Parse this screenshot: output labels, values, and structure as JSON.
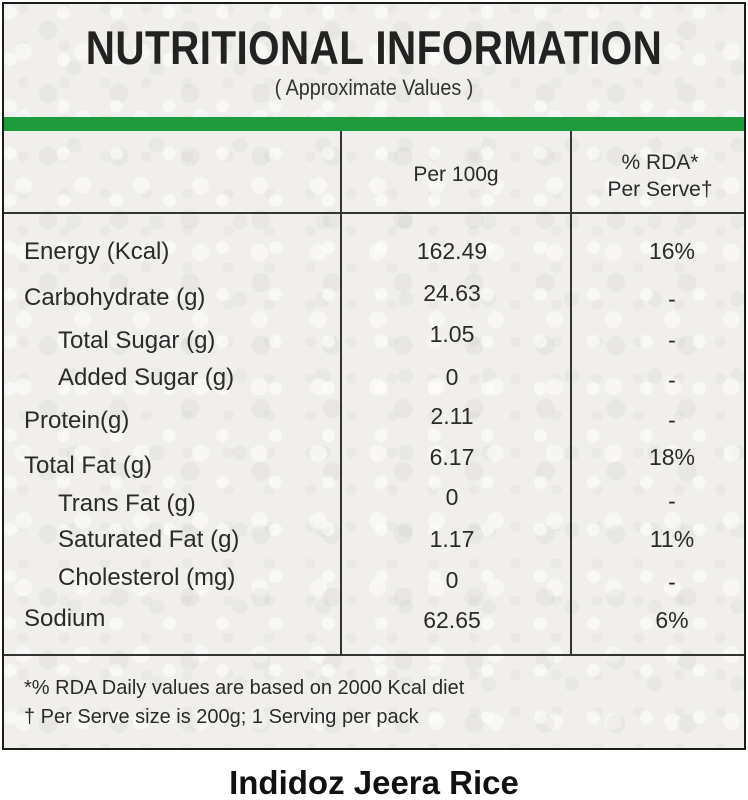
{
  "label": {
    "title": "NUTRITIONAL INFORMATION",
    "subtitle": "( Approximate Values )",
    "accent_color": "#1f9a3c",
    "columns": {
      "per_100g": "Per 100g",
      "rda_line1": "% RDA*",
      "rda_line2": "Per Serve†"
    },
    "rows": [
      {
        "name": "Energy (Kcal)",
        "per_100g": "162.49",
        "rda": "16%"
      },
      {
        "name": "Carbohydrate (g)",
        "per_100g": "24.63",
        "rda": "-"
      },
      {
        "name": "Total Sugar (g)",
        "per_100g": "1.05",
        "rda": "-"
      },
      {
        "name": "Added Sugar (g)",
        "per_100g": "0",
        "rda": "-"
      },
      {
        "name": "Protein(g)",
        "per_100g": "2.11",
        "rda": "-"
      },
      {
        "name": "Total Fat (g)",
        "per_100g": "6.17",
        "rda": "18%"
      },
      {
        "name": "Trans Fat (g)",
        "per_100g": "0",
        "rda": "-"
      },
      {
        "name": "Saturated Fat (g)",
        "per_100g": "1.17",
        "rda": "11%"
      },
      {
        "name": "Cholesterol (mg)",
        "per_100g": "0",
        "rda": "-"
      },
      {
        "name": "Sodium",
        "per_100g": "62.65",
        "rda": "6%"
      }
    ],
    "footnotes": [
      "*% RDA Daily values are based on 2000 Kcal diet",
      "† Per Serve size is 200g; 1 Serving per pack"
    ]
  },
  "product_name": "Indidoz Jeera Rice"
}
